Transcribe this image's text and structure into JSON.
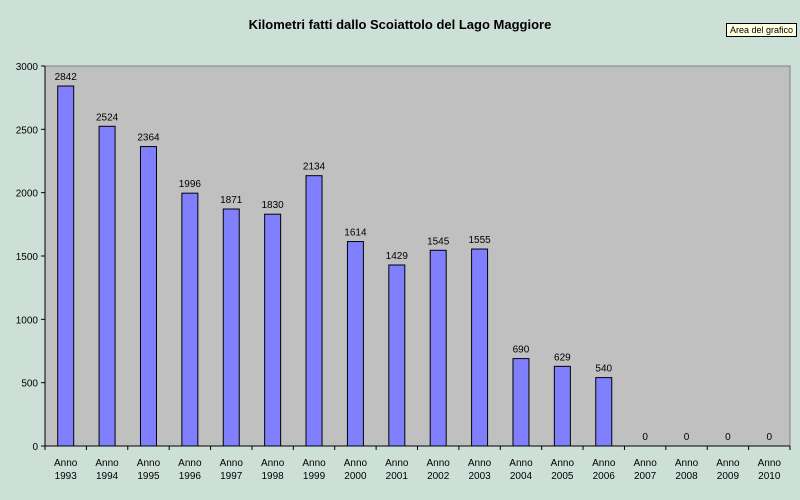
{
  "chart_data": {
    "type": "bar",
    "title": "Kilometri fatti dallo Scoiattolo del Lago Maggiore",
    "categories": [
      "Anno 1993",
      "Anno 1994",
      "Anno 1995",
      "Anno 1996",
      "Anno 1997",
      "Anno 1998",
      "Anno 1999",
      "Anno 2000",
      "Anno 2001",
      "Anno 2002",
      "Anno 2003",
      "Anno 2004",
      "Anno 2005",
      "Anno 2006",
      "Anno 2007",
      "Anno 2008",
      "Anno 2009",
      "Anno 2010"
    ],
    "values": [
      2842,
      2524,
      2364,
      1996,
      1871,
      1830,
      2134,
      1614,
      1429,
      1545,
      1555,
      690,
      629,
      540,
      0,
      0,
      0,
      0
    ],
    "ylim": [
      0,
      3000
    ],
    "yticks": [
      0,
      500,
      1000,
      1500,
      2000,
      2500,
      3000
    ],
    "xlabel": "",
    "ylabel": "",
    "grid": false,
    "bar_color": "#8080ff",
    "plot_background": "#c0c0c0"
  },
  "tooltip": "Area del grafico"
}
